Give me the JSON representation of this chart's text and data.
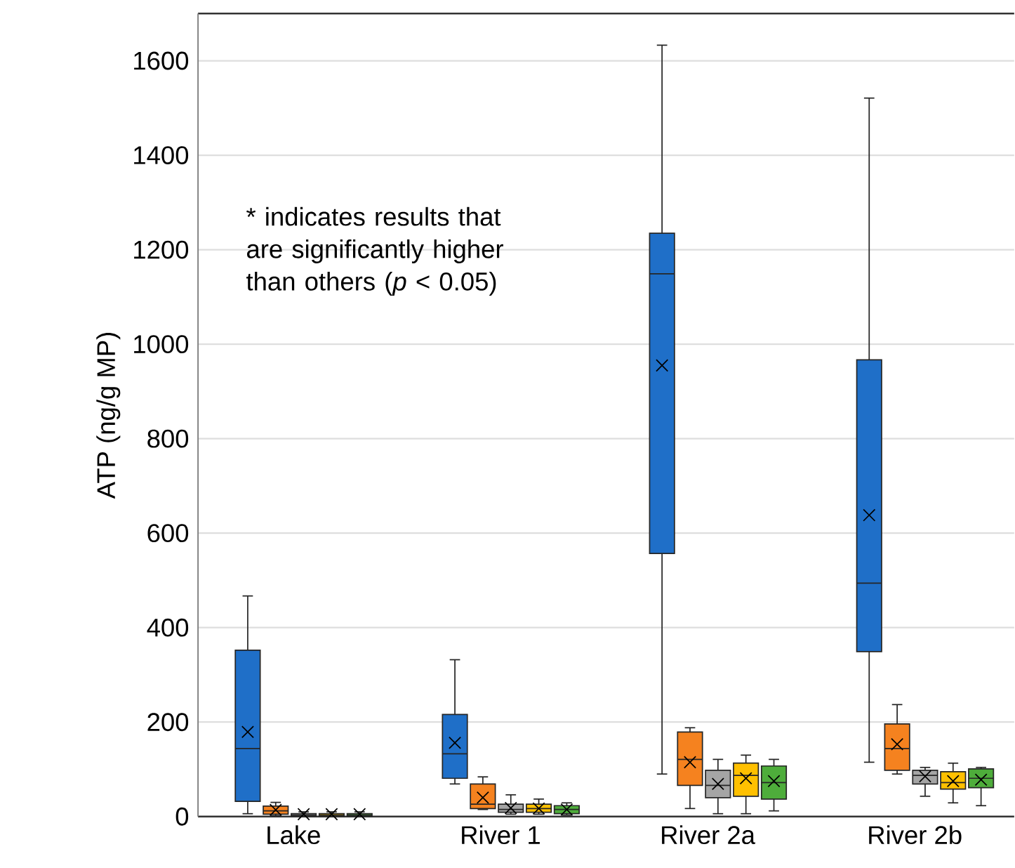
{
  "chart_data": {
    "type": "box",
    "ylabel": "ATP (ng/g MP)",
    "categories": [
      "Lake",
      "River 1",
      "River 2a",
      "River 2b"
    ],
    "ylim": [
      0,
      1700
    ],
    "yticks": [
      0,
      200,
      400,
      600,
      800,
      1000,
      1200,
      1400,
      1600
    ],
    "grid": "y",
    "annotations": [
      "* indicates results that are significantly higher than others (*p* < 0.05)"
    ],
    "series": [
      {
        "color": "#1f6fc8",
        "boxes": [
          {
            "low": 6,
            "q1": 32,
            "median": 144,
            "q3": 352,
            "high": 467,
            "mean": 179
          },
          {
            "low": 69,
            "q1": 81,
            "median": 133,
            "q3": 216,
            "high": 332,
            "mean": 156
          },
          {
            "low": 90,
            "q1": 557,
            "median": 1149,
            "q3": 1235,
            "high": 1633,
            "mean": 955
          },
          {
            "low": 115,
            "q1": 349,
            "median": 494,
            "q3": 967,
            "high": 1521,
            "mean": 638
          }
        ]
      },
      {
        "color": "#f5821f",
        "boxes": [
          {
            "low": 2,
            "q1": 5,
            "median": 12,
            "q3": 22,
            "high": 30,
            "mean": 14
          },
          {
            "low": 15,
            "q1": 17,
            "median": 26,
            "q3": 69,
            "high": 84,
            "mean": 40
          },
          {
            "low": 17,
            "q1": 66,
            "median": 121,
            "q3": 179,
            "high": 188,
            "mean": 115
          },
          {
            "low": 90,
            "q1": 98,
            "median": 144,
            "q3": 196,
            "high": 237,
            "mean": 153
          }
        ]
      },
      {
        "color": "#a5a5a5",
        "boxes": [
          {
            "low": 0,
            "q1": 1,
            "median": 3,
            "q3": 6,
            "high": 10,
            "mean": 5
          },
          {
            "low": 5,
            "q1": 9,
            "median": 15,
            "q3": 26,
            "high": 46,
            "mean": 18
          },
          {
            "low": 6,
            "q1": 40,
            "median": 66,
            "q3": 98,
            "high": 121,
            "mean": 69
          },
          {
            "low": 43,
            "q1": 69,
            "median": 87,
            "q3": 98,
            "high": 104,
            "mean": 85
          }
        ]
      },
      {
        "color": "#ffc000",
        "boxes": [
          {
            "low": 0,
            "q1": 1,
            "median": 3,
            "q3": 6,
            "high": 10,
            "mean": 5
          },
          {
            "low": 5,
            "q1": 9,
            "median": 17,
            "q3": 26,
            "high": 37,
            "mean": 17
          },
          {
            "low": 6,
            "q1": 43,
            "median": 87,
            "q3": 113,
            "high": 130,
            "mean": 81
          },
          {
            "low": 29,
            "q1": 58,
            "median": 72,
            "q3": 95,
            "high": 113,
            "mean": 75
          }
        ]
      },
      {
        "color": "#4ead3b",
        "boxes": [
          {
            "low": 0,
            "q1": 1,
            "median": 3,
            "q3": 6,
            "high": 10,
            "mean": 5
          },
          {
            "low": 3,
            "q1": 6,
            "median": 15,
            "q3": 23,
            "high": 29,
            "mean": 15
          },
          {
            "low": 12,
            "q1": 37,
            "median": 72,
            "q3": 107,
            "high": 121,
            "mean": 75
          },
          {
            "low": 23,
            "q1": 61,
            "median": 81,
            "q3": 101,
            "high": 104,
            "mean": 78
          }
        ]
      }
    ]
  }
}
